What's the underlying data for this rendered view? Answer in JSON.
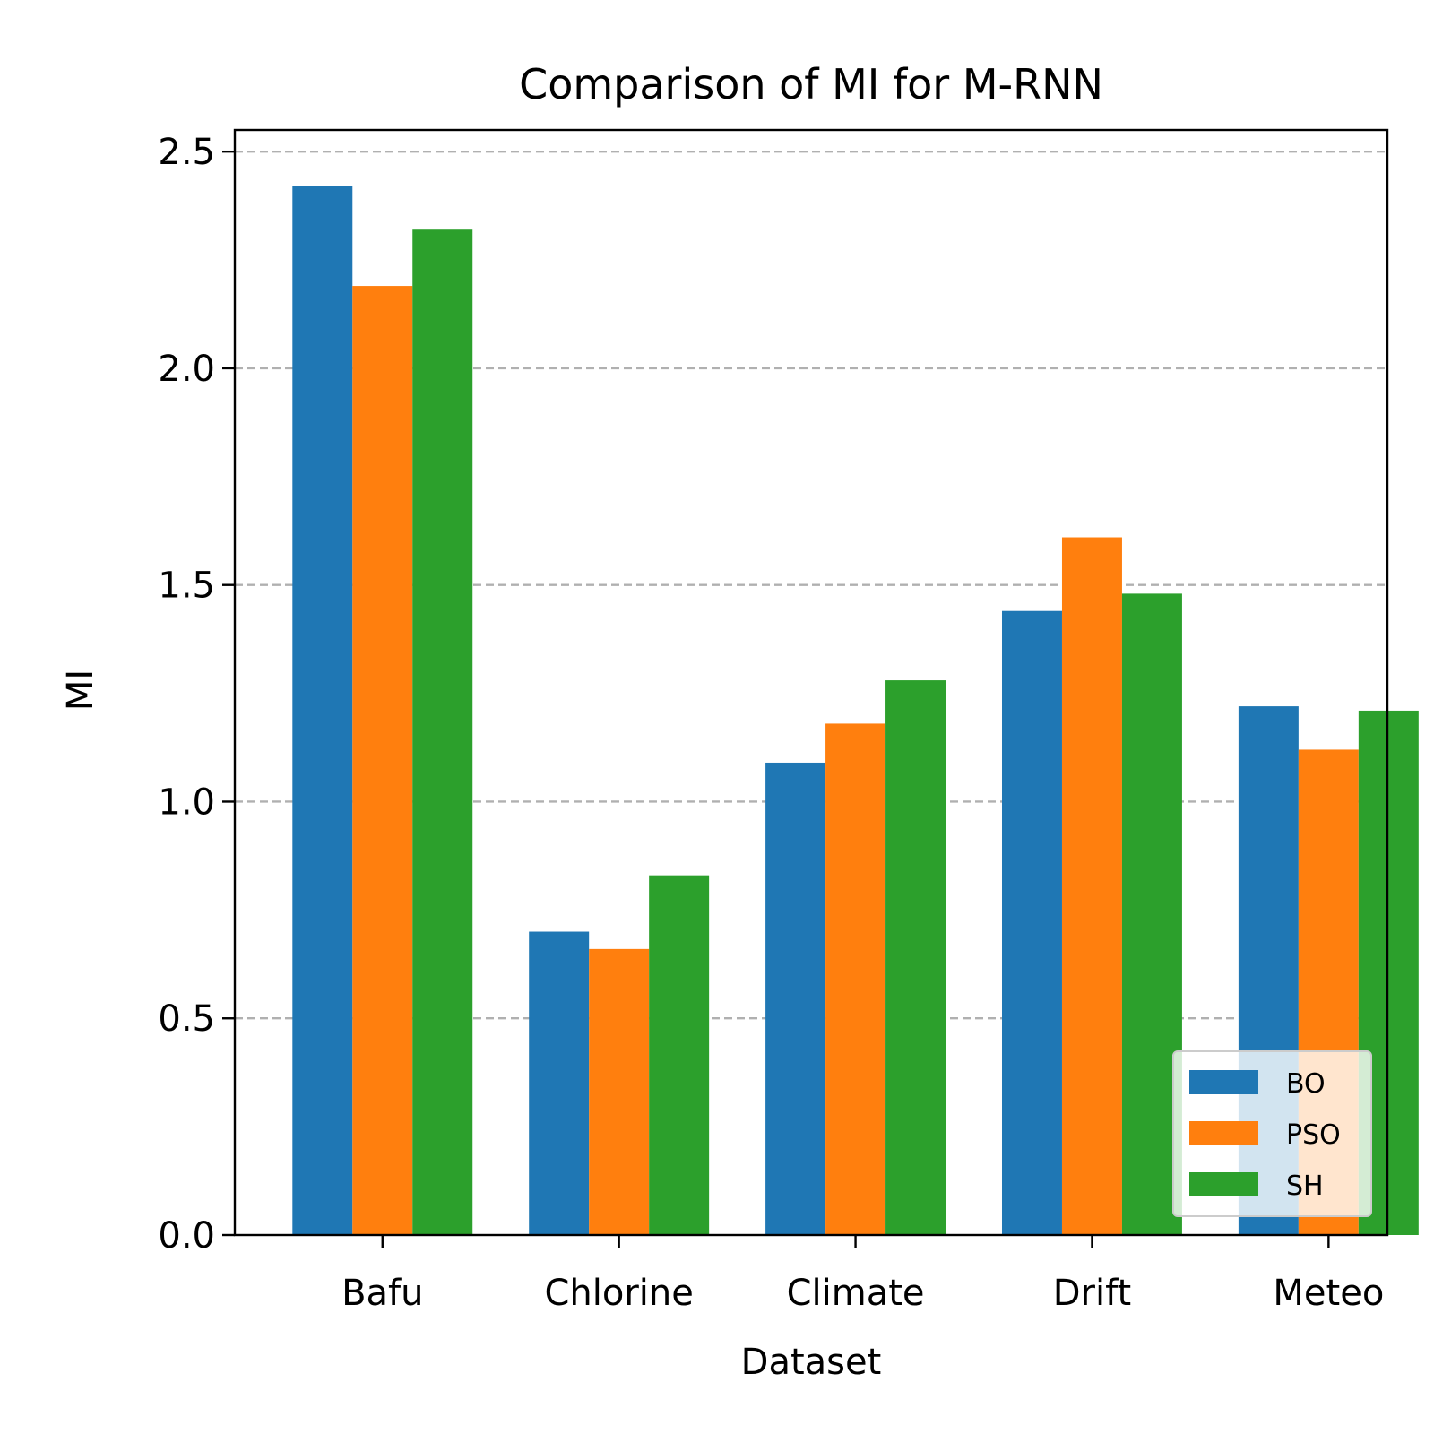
{
  "chart_data": {
    "type": "bar",
    "title": "Comparison of MI for M-RNN",
    "xlabel": "Dataset",
    "ylabel": "MI",
    "categories": [
      "Bafu",
      "Chlorine",
      "Climate",
      "Drift",
      "Meteo"
    ],
    "series": [
      {
        "name": "BO",
        "color": "#1f77b4",
        "values": [
          2.42,
          0.7,
          1.09,
          1.44,
          1.22
        ]
      },
      {
        "name": "PSO",
        "color": "#ff7f0e",
        "values": [
          2.19,
          0.66,
          1.18,
          1.61,
          1.12
        ]
      },
      {
        "name": "SH",
        "color": "#2ca02c",
        "values": [
          2.32,
          0.83,
          1.28,
          1.48,
          1.21
        ]
      }
    ],
    "ylim": [
      0,
      2.55
    ],
    "yticks": [
      0.0,
      0.5,
      1.0,
      1.5,
      2.0,
      2.5
    ],
    "ytick_labels": [
      "0.0",
      "0.5",
      "1.0",
      "1.5",
      "2.0",
      "2.5"
    ],
    "grid": {
      "axis": "y",
      "style": "dashed"
    },
    "legend": {
      "position": "lower-right"
    }
  }
}
